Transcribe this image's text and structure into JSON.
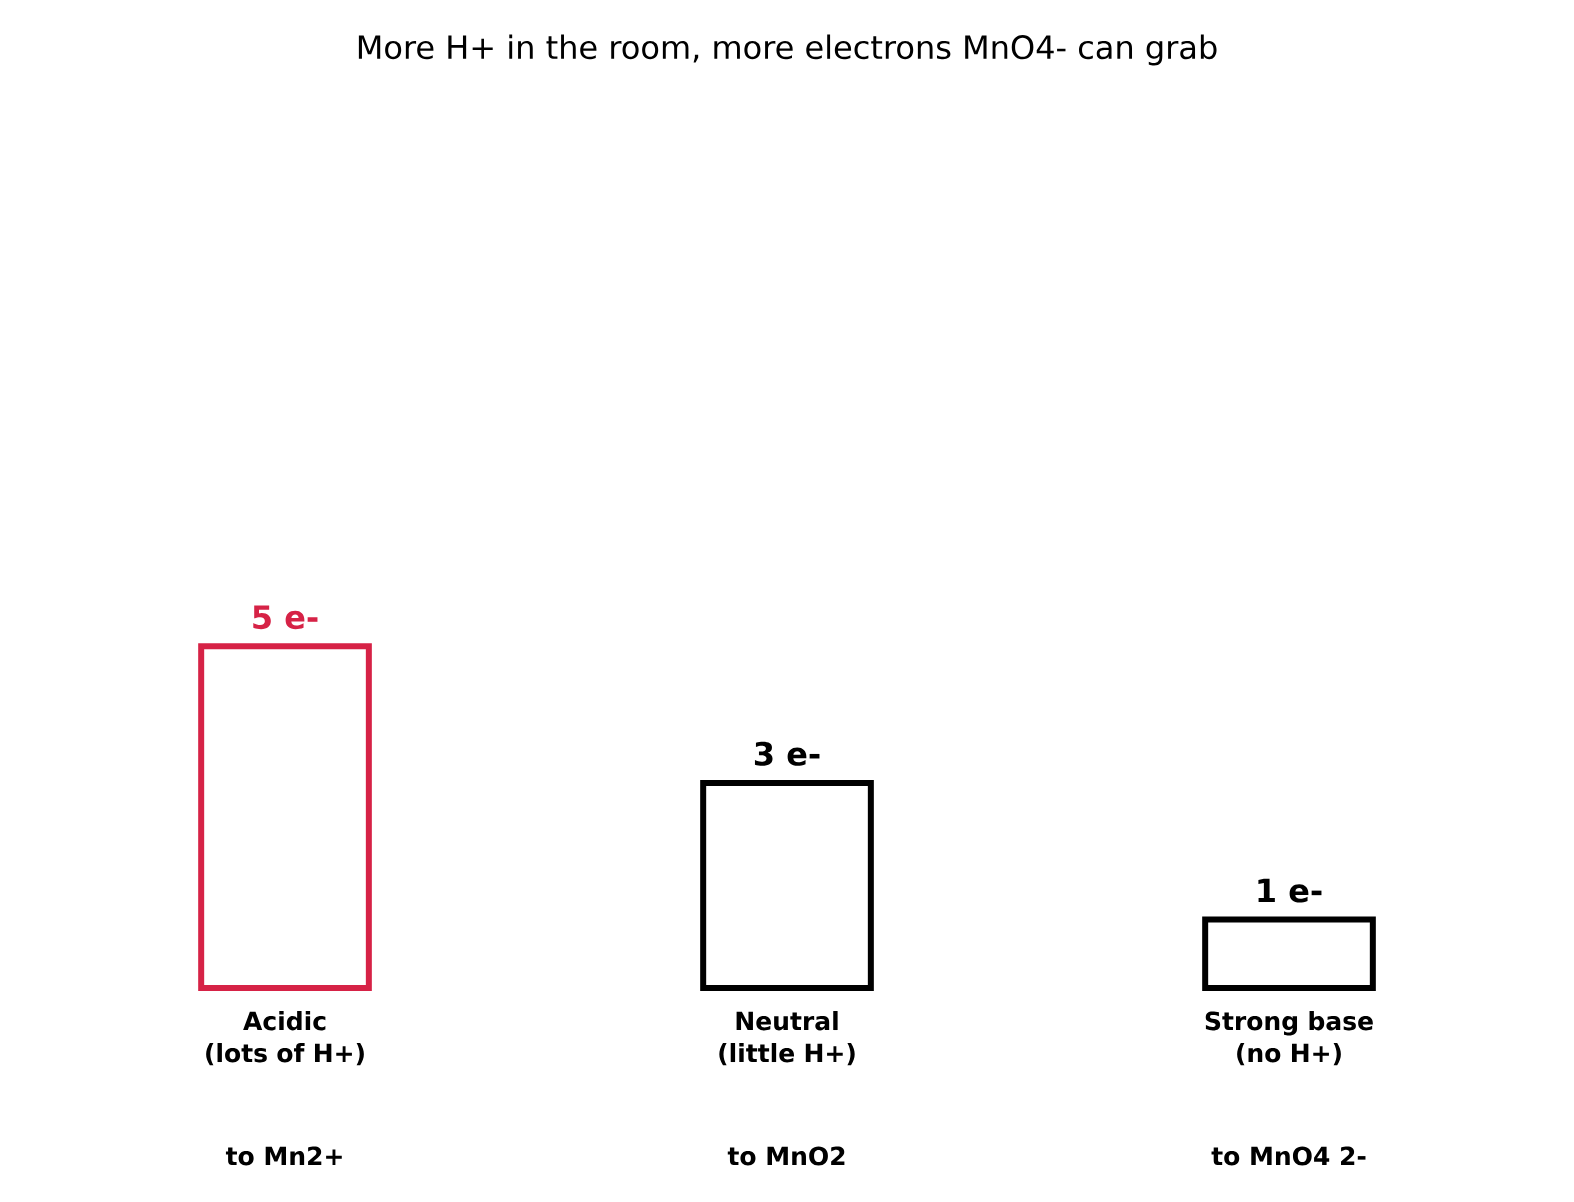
{
  "chart_data": {
    "type": "bar",
    "title": "More H+ in the room, more electrons MnO4- can grab",
    "categories": [
      "Acidic\n(lots of H+)",
      "Neutral\n(little H+)",
      "Strong base\n(no H+)"
    ],
    "values": [
      5,
      3,
      1
    ],
    "colors": [
      "#d62246",
      "#000000",
      "#000000"
    ],
    "value_labels": [
      "5 e-",
      "3 e-",
      "1 e-"
    ],
    "annotations": [
      "to Mn2+",
      "to MnO2",
      "to MnO4 2-"
    ]
  }
}
